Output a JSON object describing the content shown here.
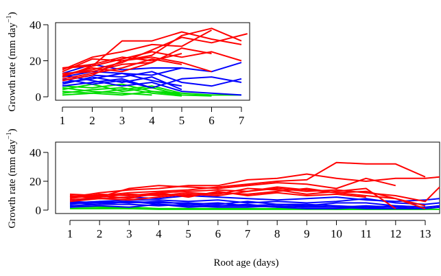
{
  "colors": {
    "red": "#ff0000",
    "blue": "#0000ff",
    "green": "#00dd00"
  },
  "chart_data": [
    {
      "type": "line",
      "xlabel": "",
      "ylabel_main": "Growth rate (mm day",
      "ylabel_sup": "−1",
      "ylabel_close": ")",
      "xlim": [
        1,
        7.2
      ],
      "ylim": [
        0,
        40
      ],
      "xticks": [
        1,
        2,
        3,
        4,
        5,
        6,
        7
      ],
      "yticks": [
        0,
        20,
        40
      ],
      "series": [
        {
          "color": "red",
          "x": [
            1,
            2,
            3,
            4,
            5,
            6,
            7
          ],
          "y": [
            16,
            17,
            31,
            31,
            36,
            32,
            29
          ]
        },
        {
          "color": "red",
          "x": [
            1,
            2,
            3,
            4,
            5,
            6,
            7
          ],
          "y": [
            14,
            21,
            20,
            23,
            34,
            38,
            31
          ]
        },
        {
          "color": "red",
          "x": [
            1,
            2,
            3,
            4,
            5,
            6,
            7.2
          ],
          "y": [
            12,
            15,
            19,
            26,
            33,
            30,
            35
          ]
        },
        {
          "color": "red",
          "x": [
            1,
            2,
            3,
            4,
            5,
            6
          ],
          "y": [
            15,
            22,
            25,
            29,
            28,
            37
          ]
        },
        {
          "color": "red",
          "x": [
            1,
            2,
            3,
            4,
            5,
            6,
            7
          ],
          "y": [
            11,
            17,
            21,
            25,
            22,
            25,
            20
          ]
        },
        {
          "color": "red",
          "x": [
            1,
            2,
            3,
            4,
            5,
            6
          ],
          "y": [
            13,
            14,
            18,
            19,
            27,
            24
          ]
        },
        {
          "color": "red",
          "x": [
            1,
            2,
            3,
            4,
            5
          ],
          "y": [
            16,
            18,
            22,
            20,
            24
          ]
        },
        {
          "color": "red",
          "x": [
            1,
            2,
            3,
            4,
            5
          ],
          "y": [
            10,
            13,
            16,
            21,
            18
          ]
        },
        {
          "color": "red",
          "x": [
            1,
            2,
            3,
            4,
            5,
            6
          ],
          "y": [
            9,
            12,
            20,
            22,
            19,
            14
          ]
        },
        {
          "color": "red",
          "x": [
            1,
            2,
            3,
            4
          ],
          "y": [
            12,
            16,
            14,
            19
          ]
        },
        {
          "color": "blue",
          "x": [
            1,
            2,
            3,
            4,
            5,
            6,
            7
          ],
          "y": [
            13,
            18,
            15,
            16,
            16,
            14,
            19
          ]
        },
        {
          "color": "blue",
          "x": [
            1,
            2,
            3,
            4,
            5
          ],
          "y": [
            11,
            14,
            13,
            12,
            16
          ]
        },
        {
          "color": "blue",
          "x": [
            1,
            2,
            3,
            4,
            5,
            6,
            7
          ],
          "y": [
            9,
            12,
            11,
            14,
            8,
            6,
            10
          ]
        },
        {
          "color": "blue",
          "x": [
            1,
            2,
            3,
            4,
            5
          ],
          "y": [
            8,
            10,
            13,
            9,
            6
          ]
        },
        {
          "color": "blue",
          "x": [
            1,
            2,
            3,
            4,
            5,
            6,
            7
          ],
          "y": [
            10,
            7,
            9,
            5,
            10,
            11,
            8
          ]
        },
        {
          "color": "blue",
          "x": [
            1,
            2,
            3,
            4,
            5
          ],
          "y": [
            7,
            11,
            8,
            11,
            4
          ]
        },
        {
          "color": "blue",
          "x": [
            1,
            2,
            3,
            4,
            5,
            6,
            7
          ],
          "y": [
            12,
            9,
            6,
            8,
            3,
            2,
            1
          ]
        },
        {
          "color": "blue",
          "x": [
            1,
            2,
            3,
            4
          ],
          "y": [
            6,
            8,
            10,
            5
          ]
        },
        {
          "color": "green",
          "x": [
            1,
            2,
            3,
            4,
            5
          ],
          "y": [
            6,
            5,
            7,
            3,
            2
          ]
        },
        {
          "color": "green",
          "x": [
            1,
            2,
            3,
            4,
            5
          ],
          "y": [
            4,
            7,
            3,
            5,
            1
          ]
        },
        {
          "color": "green",
          "x": [
            1,
            2,
            3,
            4,
            5,
            6,
            7
          ],
          "y": [
            3,
            2,
            4,
            6,
            2,
            1,
            1
          ]
        },
        {
          "color": "green",
          "x": [
            1,
            2,
            3,
            4,
            5
          ],
          "y": [
            2,
            4,
            5,
            2,
            0.5
          ]
        },
        {
          "color": "green",
          "x": [
            1,
            2,
            3,
            4
          ],
          "y": [
            5,
            3,
            2,
            1
          ]
        },
        {
          "color": "green",
          "x": [
            1,
            2,
            3,
            4,
            5,
            6
          ],
          "y": [
            1,
            2,
            1,
            3,
            1,
            0.5
          ]
        }
      ]
    },
    {
      "type": "line",
      "xlabel": "Root age (days)",
      "ylabel_main": "Growth rate (mm day",
      "ylabel_sup": "−1",
      "ylabel_close": ")",
      "xlim": [
        1,
        13.6
      ],
      "ylim": [
        0,
        40
      ],
      "xticks": [
        1,
        2,
        3,
        4,
        5,
        6,
        7,
        8,
        9,
        10,
        11,
        12,
        13
      ],
      "yticks": [
        0,
        20,
        40
      ],
      "series": [
        {
          "color": "red",
          "x": [
            1,
            2,
            3,
            4,
            5,
            6,
            7,
            8,
            9,
            10,
            11,
            12,
            13
          ],
          "y": [
            11,
            10,
            12,
            13,
            14,
            16,
            18,
            20,
            21,
            33,
            32,
            32,
            23
          ]
        },
        {
          "color": "red",
          "x": [
            1,
            2,
            3,
            4,
            5,
            6,
            7,
            8,
            9,
            10,
            11,
            12,
            13,
            13.6
          ],
          "y": [
            9,
            12,
            14,
            15,
            17,
            17,
            21,
            22,
            25,
            22,
            20,
            22,
            22,
            23
          ]
        },
        {
          "color": "red",
          "x": [
            1,
            2,
            3,
            4,
            5,
            6,
            7,
            8,
            9,
            10,
            11,
            12
          ],
          "y": [
            10,
            9,
            15,
            17,
            16,
            15,
            17,
            19,
            18,
            15,
            22,
            17
          ]
        },
        {
          "color": "red",
          "x": [
            1,
            2,
            3,
            4,
            5,
            6,
            7,
            8,
            9,
            10,
            11,
            12,
            13
          ],
          "y": [
            8,
            11,
            10,
            12,
            13,
            14,
            13,
            16,
            14,
            12,
            10,
            8,
            3
          ]
        },
        {
          "color": "red",
          "x": [
            1,
            2,
            3,
            4,
            5,
            6,
            7,
            8,
            9,
            10,
            11,
            12
          ],
          "y": [
            7,
            9,
            11,
            10,
            12,
            11,
            15,
            14,
            11,
            13,
            15,
            1
          ]
        },
        {
          "color": "red",
          "x": [
            1,
            2,
            3,
            4,
            5,
            6,
            7,
            8,
            9,
            10,
            11,
            12,
            13
          ],
          "y": [
            10,
            8,
            9,
            11,
            10,
            12,
            11,
            13,
            15,
            12,
            13,
            8,
            1
          ]
        },
        {
          "color": "red",
          "x": [
            1,
            2,
            3,
            4,
            5,
            6,
            7,
            8,
            9,
            10,
            11,
            12,
            13,
            13.6
          ],
          "y": [
            6,
            8,
            7,
            9,
            11,
            10,
            13,
            15,
            13,
            14,
            12,
            10,
            6,
            16
          ]
        },
        {
          "color": "red",
          "x": [
            1,
            2,
            3,
            4,
            5,
            6,
            7,
            8,
            9,
            10,
            11
          ],
          "y": [
            9,
            10,
            8,
            12,
            9,
            13,
            10,
            12,
            10,
            11,
            9
          ]
        },
        {
          "color": "blue",
          "x": [
            1,
            2,
            3,
            4,
            5,
            6,
            7,
            8,
            9,
            10,
            11,
            12,
            13,
            13.6
          ],
          "y": [
            7,
            8,
            9,
            8,
            10,
            9,
            8,
            7,
            8,
            9,
            7,
            6,
            7,
            8
          ]
        },
        {
          "color": "blue",
          "x": [
            1,
            2,
            3,
            4,
            5,
            6,
            7,
            8,
            9,
            10,
            11,
            12,
            13,
            13.6
          ],
          "y": [
            5,
            6,
            7,
            7,
            6,
            7,
            5,
            6,
            5,
            6,
            8,
            5,
            4,
            5
          ]
        },
        {
          "color": "blue",
          "x": [
            1,
            2,
            3,
            4,
            5,
            6,
            7,
            8,
            9,
            10,
            11,
            12,
            13,
            13.6
          ],
          "y": [
            6,
            5,
            6,
            5,
            5,
            4,
            6,
            4,
            3,
            5,
            5,
            3,
            2,
            3
          ]
        },
        {
          "color": "blue",
          "x": [
            1,
            2,
            3,
            4,
            5,
            6,
            7,
            8,
            9,
            10,
            11,
            12,
            13
          ],
          "y": [
            4,
            6,
            5,
            6,
            4,
            5,
            3,
            4,
            4,
            3,
            2,
            3,
            2
          ]
        },
        {
          "color": "blue",
          "x": [
            1,
            2,
            3,
            4,
            5,
            6,
            7,
            8,
            9,
            10,
            11,
            12,
            13,
            13.6
          ],
          "y": [
            3,
            4,
            4,
            3,
            4,
            3,
            3,
            2,
            3,
            2,
            3,
            2,
            1,
            2
          ]
        },
        {
          "color": "blue",
          "x": [
            1,
            2,
            3,
            4,
            5,
            6,
            7,
            8,
            9,
            10,
            11,
            12,
            13
          ],
          "y": [
            2,
            3,
            2,
            4,
            3,
            2,
            2,
            3,
            2,
            2,
            1,
            1,
            1
          ]
        },
        {
          "color": "blue",
          "x": [
            1,
            2,
            3,
            4,
            5,
            6,
            7,
            8,
            9,
            10,
            11,
            12
          ],
          "y": [
            5,
            4,
            6,
            4,
            2,
            3,
            4,
            2,
            1,
            1,
            2,
            1
          ]
        },
        {
          "color": "green",
          "x": [
            1,
            2,
            3,
            4,
            5,
            6,
            7,
            8,
            9,
            10,
            11,
            12,
            13,
            13.6
          ],
          "y": [
            2,
            2,
            1,
            1,
            1,
            1,
            1,
            1,
            1,
            0.5,
            0.5,
            0.5,
            0.5,
            0.5
          ]
        },
        {
          "color": "green",
          "x": [
            1,
            2,
            3,
            4,
            5,
            6
          ],
          "y": [
            3,
            2,
            2,
            1,
            1,
            1
          ]
        },
        {
          "color": "green",
          "x": [
            1,
            2,
            3,
            4,
            5,
            6,
            7,
            8,
            9,
            10,
            11,
            12,
            13
          ],
          "y": [
            1,
            1,
            1,
            0.5,
            0.5,
            0.5,
            0.5,
            0.5,
            0.5,
            0.5,
            0.5,
            0.5,
            0.5
          ]
        }
      ]
    }
  ]
}
